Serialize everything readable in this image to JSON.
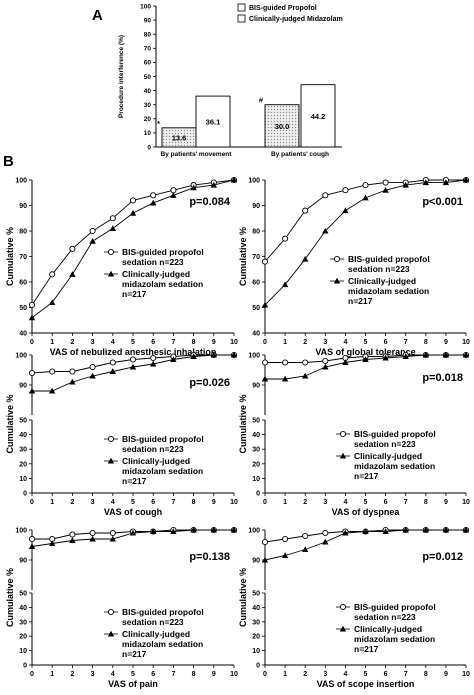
{
  "figure": {
    "panel_a_letter": "A",
    "panel_b_letter": "B",
    "legend_marker_circle": "circle-open",
    "legend_marker_triangle": "triangle-filled",
    "colors": {
      "line": "#000000",
      "bar_fill_pattern": "#d9d9d9",
      "background": "#ffffff"
    }
  },
  "chart_data": [
    {
      "id": "bar",
      "type": "bar",
      "ylabel": "Procedure interference (%)",
      "ylim": [
        0,
        100
      ],
      "yticks": [
        0,
        10,
        20,
        30,
        40,
        50,
        60,
        70,
        80,
        90,
        100
      ],
      "categories": [
        "By patients' movement",
        "By patients' cough"
      ],
      "series": [
        {
          "name": "BIS-guided Propofol",
          "values": [
            13.6,
            30.0
          ],
          "labels": [
            "13.6",
            "30.0"
          ],
          "pattern": "dotted"
        },
        {
          "name": "Clinically-judged Midazolam",
          "values": [
            36.1,
            44.2
          ],
          "labels": [
            "36.1",
            "44.2"
          ],
          "pattern": "white"
        }
      ],
      "annotations": [
        "*",
        "#"
      ],
      "legend_position": "top-right"
    },
    {
      "id": "inhal",
      "type": "line",
      "xlabel": "VAS of nebulized anesthesic inhalation",
      "ylabel": "Cumulative %",
      "xlim": [
        0,
        10
      ],
      "xticks": [
        0,
        1,
        2,
        3,
        4,
        5,
        6,
        7,
        8,
        9,
        10
      ],
      "ylim": [
        40,
        100
      ],
      "yticks": [
        40,
        50,
        60,
        70,
        80,
        90,
        100
      ],
      "broken": false,
      "p_value": "p=0.084",
      "x": [
        0,
        1,
        2,
        3,
        4,
        5,
        6,
        7,
        8,
        9,
        10
      ],
      "series": [
        {
          "name": "BIS-guided propofol sedation n=223",
          "marker": "circle",
          "values": [
            51,
            63,
            73,
            80,
            85,
            92,
            94,
            96,
            98,
            99,
            100
          ]
        },
        {
          "name": "Clinically-judged midazolam sedation n=217",
          "marker": "triangle",
          "values": [
            46,
            52,
            63,
            76,
            81,
            87,
            91,
            94,
            97,
            98,
            100
          ]
        }
      ],
      "legend": [
        "BIS-guided propofol",
        "sedation n=223",
        "Clinically-judged",
        "midazolam sedation",
        "n=217"
      ]
    },
    {
      "id": "global",
      "type": "line",
      "xlabel": "VAS of global tolerance",
      "ylabel": "Cumulative %",
      "xlim": [
        0,
        10
      ],
      "xticks": [
        0,
        1,
        2,
        3,
        4,
        5,
        6,
        7,
        8,
        9,
        10
      ],
      "ylim": [
        40,
        100
      ],
      "yticks": [
        40,
        50,
        60,
        70,
        80,
        90,
        100
      ],
      "broken": false,
      "p_value": "p<0.001",
      "x": [
        0,
        1,
        2,
        3,
        4,
        5,
        6,
        7,
        8,
        9,
        10
      ],
      "series": [
        {
          "name": "BIS-guided propofol sedation n=223",
          "marker": "circle",
          "values": [
            68,
            77,
            88,
            94,
            96,
            98,
            99,
            99,
            100,
            100,
            100
          ]
        },
        {
          "name": "Clinically-judged midazolam sedation n=217",
          "marker": "triangle",
          "values": [
            51,
            59,
            69,
            80,
            88,
            93,
            96,
            98,
            99,
            99,
            100
          ]
        }
      ],
      "legend": [
        "BIS-guided propofol",
        "sedation n=223",
        "Clinically-judged",
        "midazolam sedation",
        "n=217"
      ]
    },
    {
      "id": "cough",
      "type": "line",
      "xlabel": "VAS of cough",
      "ylabel": "Cumulative %",
      "xlim": [
        0,
        10
      ],
      "xticks": [
        0,
        1,
        2,
        3,
        4,
        5,
        6,
        7,
        8,
        9,
        10
      ],
      "upper_ylim": [
        80,
        100
      ],
      "upper_yticks": [
        90,
        100
      ],
      "lower_ylim": [
        0,
        50
      ],
      "lower_yticks": [
        0,
        10,
        20,
        30,
        40,
        50
      ],
      "broken": true,
      "p_value": "p=0.026",
      "x": [
        0,
        1,
        2,
        3,
        4,
        5,
        6,
        7,
        8,
        9,
        10
      ],
      "series": [
        {
          "name": "BIS-guided propofol sedation n=223",
          "marker": "circle",
          "values": [
            94,
            94.5,
            94.5,
            96,
            97.5,
            98.5,
            99,
            99.5,
            100,
            100,
            100
          ]
        },
        {
          "name": "Clinically-judged midazolam sedation n=217",
          "marker": "triangle",
          "values": [
            88,
            88,
            91,
            93,
            94.5,
            96,
            97,
            98.5,
            99.5,
            100,
            100
          ]
        }
      ],
      "legend": [
        "BIS-guided propofol",
        "sedation n=223",
        "Clinically-judged",
        "midazolam sedation",
        "n=217"
      ]
    },
    {
      "id": "dyspnea",
      "type": "line",
      "xlabel": "VAS of dyspnea",
      "ylabel": "Cumulative %",
      "xlim": [
        0,
        10
      ],
      "xticks": [
        0,
        1,
        2,
        3,
        4,
        5,
        6,
        7,
        8,
        9,
        10
      ],
      "upper_ylim": [
        80,
        100
      ],
      "upper_yticks": [
        90,
        100
      ],
      "lower_ylim": [
        0,
        50
      ],
      "lower_yticks": [
        0,
        10,
        20,
        30,
        40,
        50
      ],
      "broken": true,
      "p_value": "p=0.018",
      "x": [
        0,
        1,
        2,
        3,
        4,
        5,
        6,
        7,
        8,
        9,
        10
      ],
      "series": [
        {
          "name": "BIS-guided propofol sedation n=223",
          "marker": "circle",
          "values": [
            97.5,
            97.5,
            97.5,
            98,
            99,
            99.5,
            99.5,
            100,
            100,
            100,
            100
          ]
        },
        {
          "name": "Clinically-judged midazolam sedation n=217",
          "marker": "triangle",
          "values": [
            92,
            92,
            93,
            96,
            97.5,
            98.5,
            99,
            99.5,
            100,
            100,
            100
          ]
        }
      ],
      "legend": [
        "BIS-guided propofol",
        "sedation n=223",
        "Clinically-judged",
        "midazolam sedation",
        "n=217"
      ]
    },
    {
      "id": "pain",
      "type": "line",
      "xlabel": "VAS of pain",
      "ylabel": "Cumulative %",
      "xlim": [
        0,
        10
      ],
      "xticks": [
        0,
        1,
        2,
        3,
        4,
        5,
        6,
        7,
        8,
        9,
        10
      ],
      "upper_ylim": [
        80,
        100
      ],
      "upper_yticks": [
        90,
        100
      ],
      "lower_ylim": [
        0,
        50
      ],
      "lower_yticks": [
        0,
        10,
        20,
        30,
        40,
        50
      ],
      "broken": true,
      "p_value": "p=0.138",
      "x": [
        0,
        1,
        2,
        3,
        4,
        5,
        6,
        7,
        8,
        9,
        10
      ],
      "series": [
        {
          "name": "BIS-guided propofol sedation n=223",
          "marker": "circle",
          "values": [
            97,
            97,
            98.5,
            99,
            99,
            99.5,
            99.5,
            100,
            100,
            100,
            100
          ]
        },
        {
          "name": "Clinically-judged midazolam sedation n=217",
          "marker": "triangle",
          "values": [
            94.5,
            95.5,
            96.5,
            97,
            97,
            99,
            99.5,
            99.5,
            100,
            100,
            100
          ]
        }
      ],
      "legend": [
        "BIS-guided propofol",
        "sedation n=223",
        "Clinically-judged",
        "midazolam sedation",
        "n=217"
      ]
    },
    {
      "id": "scope",
      "type": "line",
      "xlabel": "VAS of scope insertion",
      "ylabel": "Cumulative %",
      "xlim": [
        0,
        10
      ],
      "xticks": [
        0,
        1,
        2,
        3,
        4,
        5,
        6,
        7,
        8,
        9,
        10
      ],
      "upper_ylim": [
        80,
        100
      ],
      "upper_yticks": [
        90,
        100
      ],
      "lower_ylim": [
        0,
        50
      ],
      "lower_yticks": [
        0,
        10,
        20,
        30,
        40,
        50
      ],
      "broken": true,
      "p_value": "p=0.012",
      "x": [
        0,
        1,
        2,
        3,
        4,
        5,
        6,
        7,
        8,
        9,
        10
      ],
      "series": [
        {
          "name": "BIS-guided propofol sedation n=223",
          "marker": "circle",
          "values": [
            96,
            97,
            98,
            99,
            99.5,
            99.5,
            100,
            100,
            100,
            100,
            100
          ]
        },
        {
          "name": "Clinically-judged midazolam sedation n=217",
          "marker": "triangle",
          "values": [
            90,
            91.5,
            93.5,
            96,
            99,
            99.5,
            99.5,
            100,
            100,
            100,
            100
          ]
        }
      ],
      "legend": [
        "BIS-guided propofol",
        "sedation n=223",
        "Clinically-judged",
        "midazolam sedation",
        "n=217"
      ]
    }
  ]
}
